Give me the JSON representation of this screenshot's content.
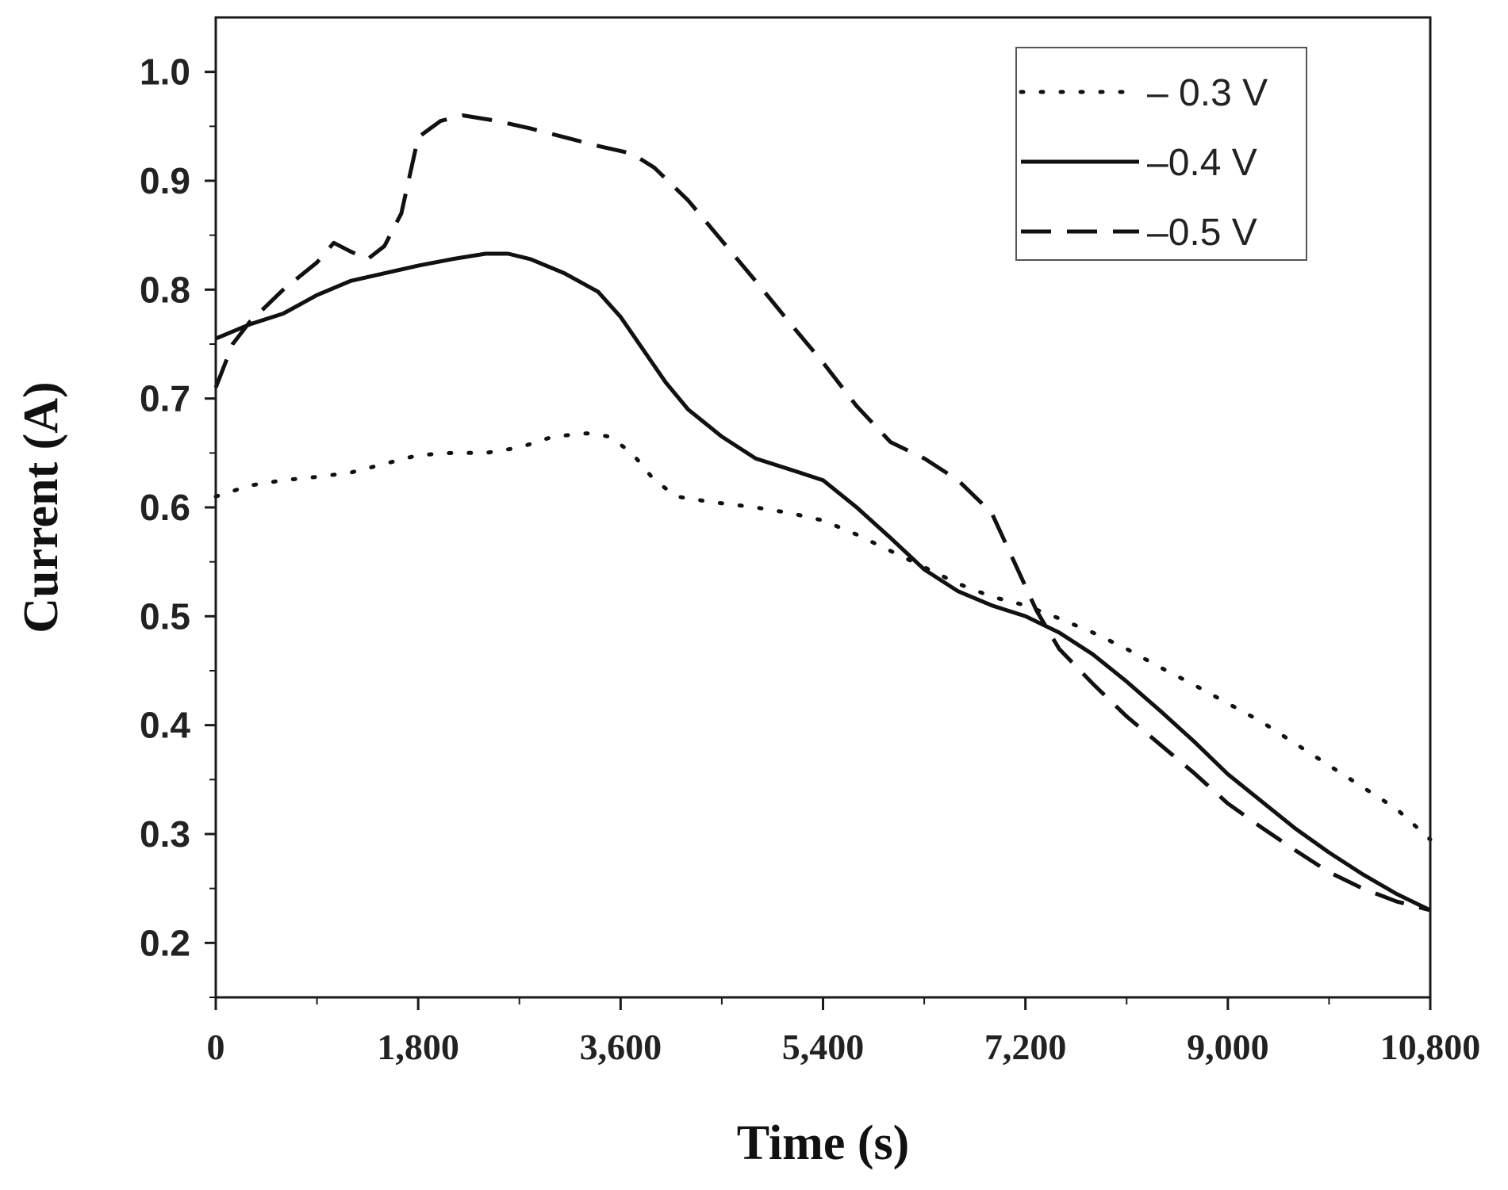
{
  "chart_data": {
    "type": "line",
    "title": "",
    "xlabel": "Time (s)",
    "ylabel": "Current (A)",
    "xlim": [
      0,
      10800
    ],
    "ylim": [
      0.15,
      1.05
    ],
    "x_ticks": [
      0,
      1800,
      3600,
      5400,
      7200,
      9000,
      10800
    ],
    "x_tick_labels": [
      "0",
      "1,800",
      "3,600",
      "5,400",
      "7,200",
      "9,000",
      "10,800"
    ],
    "y_ticks": [
      0.2,
      0.3,
      0.4,
      0.5,
      0.6,
      0.7,
      0.8,
      0.9,
      1.0
    ],
    "y_tick_labels": [
      "0.2",
      "0.3",
      "0.4",
      "0.5",
      "0.6",
      "0.7",
      "0.8",
      "0.9",
      "1.0"
    ],
    "grid": false,
    "legend_position": "top-right",
    "series": [
      {
        "name": "– 0.3 V",
        "style": "dotted",
        "color": "#111111",
        "x": [
          0,
          300,
          600,
          900,
          1200,
          1500,
          1800,
          2100,
          2400,
          2700,
          3000,
          3300,
          3500,
          3700,
          3900,
          4100,
          4400,
          4800,
          5100,
          5400,
          5700,
          6000,
          6300,
          6600,
          6900,
          7200,
          7500,
          7800,
          8100,
          8400,
          8700,
          9000,
          9300,
          9600,
          9900,
          10200,
          10500,
          10800
        ],
        "y": [
          0.61,
          0.62,
          0.625,
          0.628,
          0.632,
          0.64,
          0.648,
          0.65,
          0.65,
          0.655,
          0.665,
          0.668,
          0.665,
          0.65,
          0.625,
          0.61,
          0.605,
          0.6,
          0.595,
          0.588,
          0.575,
          0.56,
          0.545,
          0.53,
          0.518,
          0.51,
          0.498,
          0.485,
          0.47,
          0.453,
          0.437,
          0.42,
          0.403,
          0.383,
          0.363,
          0.343,
          0.323,
          0.295
        ]
      },
      {
        "name": "–0.4 V",
        "style": "solid",
        "color": "#111111",
        "x": [
          0,
          300,
          600,
          900,
          1200,
          1500,
          1800,
          2100,
          2400,
          2600,
          2800,
          3100,
          3400,
          3600,
          3800,
          4000,
          4200,
          4500,
          4800,
          5100,
          5400,
          5700,
          6000,
          6300,
          6600,
          6900,
          7200,
          7500,
          7800,
          8100,
          8400,
          8700,
          9000,
          9300,
          9600,
          9900,
          10200,
          10500,
          10800
        ],
        "y": [
          0.755,
          0.768,
          0.778,
          0.795,
          0.808,
          0.815,
          0.822,
          0.828,
          0.833,
          0.833,
          0.828,
          0.815,
          0.798,
          0.775,
          0.745,
          0.715,
          0.69,
          0.665,
          0.645,
          0.635,
          0.625,
          0.6,
          0.572,
          0.543,
          0.523,
          0.51,
          0.5,
          0.485,
          0.465,
          0.44,
          0.413,
          0.385,
          0.355,
          0.33,
          0.305,
          0.283,
          0.263,
          0.245,
          0.23
        ]
      },
      {
        "name": "–0.5 V",
        "style": "dashed",
        "color": "#111111",
        "x": [
          0,
          150,
          300,
          600,
          900,
          1050,
          1200,
          1350,
          1500,
          1650,
          1800,
          2000,
          2200,
          2500,
          2800,
          3100,
          3400,
          3700,
          3900,
          4200,
          4500,
          4800,
          5100,
          5400,
          5700,
          6000,
          6300,
          6600,
          6900,
          7100,
          7300,
          7500,
          7800,
          8100,
          8400,
          8700,
          9000,
          9300,
          9600,
          9900,
          10200,
          10500,
          10800
        ],
        "y": [
          0.71,
          0.75,
          0.77,
          0.8,
          0.825,
          0.843,
          0.835,
          0.828,
          0.84,
          0.87,
          0.94,
          0.955,
          0.96,
          0.955,
          0.948,
          0.94,
          0.932,
          0.925,
          0.912,
          0.882,
          0.845,
          0.808,
          0.77,
          0.733,
          0.693,
          0.66,
          0.645,
          0.625,
          0.595,
          0.55,
          0.505,
          0.47,
          0.438,
          0.408,
          0.382,
          0.356,
          0.328,
          0.306,
          0.285,
          0.265,
          0.25,
          0.238,
          0.23
        ]
      }
    ]
  }
}
